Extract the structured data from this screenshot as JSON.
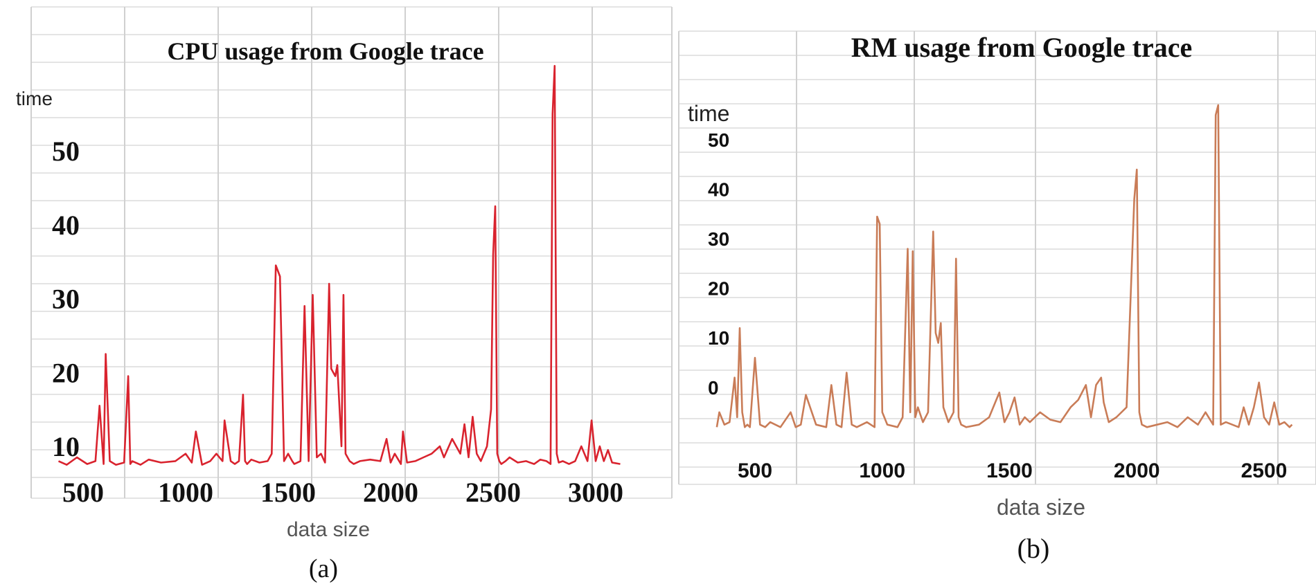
{
  "charts": [
    {
      "caption": "(a)",
      "chart_data": {
        "type": "line",
        "title": "CPU usage from Google trace",
        "xlabel": "data size",
        "ylabel": "time",
        "xticks": [
          "500",
          "1000",
          "1500",
          "2000",
          "2500",
          "3000"
        ],
        "yticks": [
          "10",
          "20",
          "30",
          "40",
          "50"
        ],
        "xlim": [
          380,
          3150
        ],
        "ylim": [
          5,
          62
        ],
        "grid": true,
        "line_color": "#d9232e",
        "series": [
          {
            "x": [
              380,
              420,
              470,
              520,
              560,
              580,
              600,
              610,
              630,
              660,
              700,
              720,
              730,
              740,
              780,
              820,
              880,
              950,
              1000,
              1030,
              1050,
              1080,
              1120,
              1150,
              1180,
              1190,
              1220,
              1240,
              1260,
              1280,
              1290,
              1300,
              1320,
              1360,
              1400,
              1420,
              1440,
              1460,
              1480,
              1500,
              1520,
              1530,
              1560,
              1580,
              1600,
              1620,
              1640,
              1660,
              1680,
              1700,
              1710,
              1730,
              1740,
              1760,
              1770,
              1780,
              1800,
              1820,
              1850,
              1900,
              1950,
              1980,
              2000,
              2020,
              2050,
              2060,
              2080,
              2120,
              2160,
              2200,
              2240,
              2260,
              2300,
              2340,
              2360,
              2380,
              2400,
              2420,
              2440,
              2470,
              2490,
              2500,
              2510,
              2520,
              2530,
              2540,
              2560,
              2580,
              2620,
              2660,
              2700,
              2730,
              2760,
              2780,
              2790,
              2800,
              2810,
              2820,
              2840,
              2870,
              2900,
              2930,
              2960,
              2980,
              3000,
              3020,
              3040,
              3060,
              3080,
              3120
            ],
            "y": [
              8,
              7.5,
              8.5,
              7.6,
              8,
              15.5,
              7.6,
              22.5,
              8,
              7.5,
              7.8,
              19.5,
              7.6,
              8,
              7.5,
              8.2,
              7.8,
              8,
              9,
              7.8,
              12,
              7.5,
              8,
              9,
              8,
              13.5,
              8,
              7.6,
              8,
              17,
              8,
              7.6,
              8.2,
              7.8,
              8,
              9,
              34.5,
              33,
              8,
              9,
              8,
              7.6,
              8,
              29,
              8,
              30.5,
              8.5,
              9,
              7.8,
              32,
              20.5,
              19.5,
              21,
              10,
              30.5,
              9,
              8,
              7.6,
              8,
              8.2,
              8,
              11,
              7.8,
              9,
              7.6,
              12,
              7.8,
              8,
              8.5,
              9,
              10,
              8.5,
              11,
              9,
              13,
              8.5,
              14,
              9,
              8,
              10,
              15,
              36,
              42.5,
              9,
              8,
              7.6,
              8,
              8.5,
              7.8,
              8,
              7.6,
              8.2,
              8,
              7.6,
              55,
              61.5,
              9,
              7.8,
              8,
              7.6,
              8,
              10,
              8,
              13.5,
              8,
              10,
              8,
              9.5,
              7.8,
              7.6
            ]
          }
        ]
      }
    },
    {
      "caption": "(b)",
      "chart_data": {
        "type": "line",
        "title": "RM usage from Google trace",
        "xlabel": "data size",
        "ylabel": "time",
        "xticks": [
          "500",
          "1000",
          "1500",
          "2000",
          "2500"
        ],
        "yticks": [
          "0",
          "10",
          "20",
          "30",
          "40",
          "50"
        ],
        "xlim": [
          330,
          2630
        ],
        "ylim": [
          -10,
          58
        ],
        "grid": true,
        "line_color": "#c97c57",
        "series": [
          {
            "x": [
              350,
              360,
              380,
              400,
              420,
              430,
              440,
              450,
              460,
              470,
              480,
              500,
              520,
              540,
              560,
              600,
              640,
              660,
              680,
              700,
              740,
              780,
              800,
              820,
              840,
              860,
              880,
              900,
              940,
              970,
              980,
              990,
              1000,
              1020,
              1060,
              1080,
              1100,
              1110,
              1120,
              1130,
              1140,
              1160,
              1180,
              1200,
              1210,
              1220,
              1230,
              1240,
              1260,
              1280,
              1290,
              1300,
              1310,
              1330,
              1380,
              1420,
              1460,
              1480,
              1500,
              1520,
              1540,
              1560,
              1580,
              1620,
              1660,
              1700,
              1740,
              1770,
              1800,
              1820,
              1840,
              1860,
              1870,
              1890,
              1920,
              1960,
              1990,
              2000,
              2010,
              2020,
              2040,
              2080,
              2120,
              2160,
              2200,
              2240,
              2270,
              2300,
              2310,
              2320,
              2330,
              2350,
              2400,
              2420,
              2440,
              2460,
              2480,
              2500,
              2520,
              2540,
              2560,
              2580,
              2600,
              2610
            ],
            "y": [
              -8,
              -5,
              -7.5,
              -7,
              2,
              -6,
              12,
              -5,
              -8,
              -7.5,
              -8,
              6,
              -7.5,
              -8,
              -7,
              -8,
              -5,
              -8,
              -7.5,
              -1.5,
              -7.5,
              -8,
              0.5,
              -7.5,
              -8,
              3,
              -7.5,
              -8,
              -7,
              -8,
              34.5,
              33,
              -5,
              -7.5,
              -8,
              -6,
              28,
              -5,
              27.5,
              -6,
              -4,
              -7,
              -5,
              31.5,
              11,
              9,
              13,
              -4,
              -7,
              -5,
              26,
              -6,
              -7.5,
              -8,
              -7.5,
              -6,
              -1,
              -7,
              -5,
              -2,
              -7.5,
              -6,
              -7,
              -5,
              -6.5,
              -7,
              -4,
              -2.5,
              0.5,
              -6,
              0.5,
              2,
              -3,
              -7,
              -6,
              -4,
              38,
              44,
              -5,
              -7.5,
              -8,
              -7.5,
              -7,
              -8,
              -6,
              -7.5,
              -5,
              -7.5,
              55,
              57,
              -7.5,
              -7,
              -8,
              -4,
              -7.5,
              -4,
              1,
              -6,
              -7.5,
              -3,
              -7.5,
              -7,
              -8,
              -7.5
            ]
          }
        ]
      }
    }
  ]
}
